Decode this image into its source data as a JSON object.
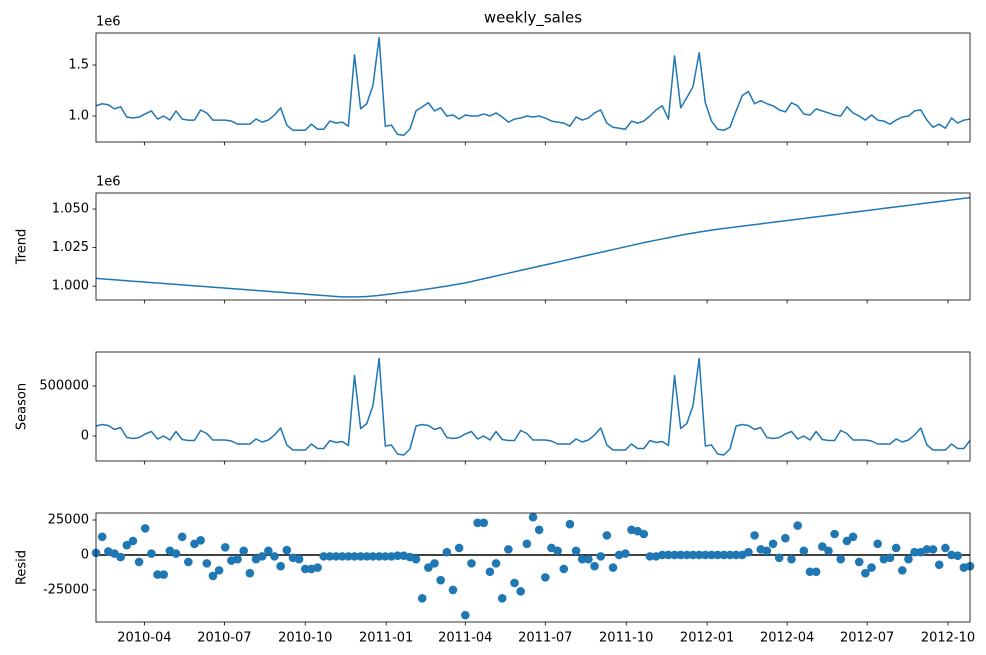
{
  "chart_data": [
    {
      "type": "line",
      "title": "weekly_sales",
      "offset_text": "1e6",
      "color": "#1f77b4",
      "values": [
        1100000,
        1120000,
        1110000,
        1070000,
        1090000,
        990000,
        980000,
        990000,
        1020000,
        1050000,
        970000,
        1000000,
        960000,
        1050000,
        970000,
        960000,
        960000,
        1060000,
        1030000,
        960000,
        960000,
        960000,
        950000,
        920000,
        920000,
        920000,
        970000,
        940000,
        960000,
        1010000,
        1080000,
        910000,
        860000,
        860000,
        860000,
        920000,
        870000,
        870000,
        950000,
        930000,
        940000,
        900000,
        1600000,
        1070000,
        1120000,
        1300000,
        1770000,
        900000,
        910000,
        820000,
        810000,
        870000,
        1050000,
        1090000,
        1130000,
        1050000,
        1080000,
        1000000,
        1010000,
        970000,
        1010000,
        1000000,
        1000000,
        1020000,
        1000000,
        1030000,
        990000,
        940000,
        970000,
        980000,
        1000000,
        990000,
        1000000,
        980000,
        950000,
        940000,
        930000,
        900000,
        990000,
        960000,
        980000,
        1030000,
        1060000,
        930000,
        890000,
        880000,
        870000,
        950000,
        930000,
        950000,
        1000000,
        1060000,
        1100000,
        970000,
        1590000,
        1080000,
        1180000,
        1290000,
        1620000,
        1130000,
        950000,
        870000,
        860000,
        890000,
        1050000,
        1200000,
        1240000,
        1120000,
        1150000,
        1120000,
        1100000,
        1060000,
        1040000,
        1130000,
        1100000,
        1020000,
        1010000,
        1070000,
        1050000,
        1030000,
        1010000,
        1000000,
        1090000,
        1030000,
        1000000,
        960000,
        1010000,
        960000,
        950000,
        920000,
        960000,
        990000,
        1000000,
        1050000,
        1060000,
        960000,
        890000,
        920000,
        880000,
        980000,
        930000,
        960000,
        970000
      ],
      "ylim": [
        745000,
        1814000
      ],
      "yticks": [
        {
          "value": 1000000,
          "label": "1.0"
        },
        {
          "value": 1500000,
          "label": "1.5"
        }
      ]
    },
    {
      "type": "line",
      "ylabel": "Trend",
      "offset_text": "1e6",
      "color": "#1f77b4",
      "values": [
        1005000,
        1004700,
        1004400,
        1004100,
        1003800,
        1003500,
        1003200,
        1002900,
        1002600,
        1002300,
        1002000,
        1001700,
        1001400,
        1001100,
        1000800,
        1000500,
        1000200,
        999900,
        999600,
        999300,
        999000,
        998700,
        998400,
        998100,
        997800,
        997500,
        997200,
        996900,
        996600,
        996300,
        996000,
        995700,
        995400,
        995100,
        994800,
        994500,
        994200,
        993900,
        993600,
        993300,
        993000,
        993000,
        993000,
        993100,
        993300,
        993600,
        994000,
        994500,
        995000,
        995500,
        996000,
        996500,
        997000,
        997600,
        998200,
        998800,
        999400,
        1000000,
        1000700,
        1001400,
        1002100,
        1003000,
        1003900,
        1004800,
        1005700,
        1006600,
        1007500,
        1008400,
        1009300,
        1010200,
        1011100,
        1012000,
        1012900,
        1013800,
        1014700,
        1015600,
        1016500,
        1017400,
        1018300,
        1019200,
        1020100,
        1021000,
        1021900,
        1022800,
        1023700,
        1024600,
        1025500,
        1026400,
        1027300,
        1028200,
        1029000,
        1029800,
        1030600,
        1031400,
        1032200,
        1033000,
        1033700,
        1034400,
        1035100,
        1035700,
        1036300,
        1036900,
        1037400,
        1037900,
        1038400,
        1038900,
        1039400,
        1039900,
        1040400,
        1040900,
        1041400,
        1041900,
        1042400,
        1042900,
        1043400,
        1043900,
        1044400,
        1044900,
        1045400,
        1045900,
        1046400,
        1046900,
        1047400,
        1047900,
        1048400,
        1048900,
        1049400,
        1049900,
        1050400,
        1050900,
        1051400,
        1051900,
        1052400,
        1052900,
        1053400,
        1053900,
        1054400,
        1054900,
        1055400,
        1055900,
        1056400,
        1056900,
        1057400
      ],
      "ylim": [
        991000,
        1060400
      ],
      "yticks": [
        {
          "value": 1000000,
          "label": "1.000"
        },
        {
          "value": 1025000,
          "label": "1.025"
        },
        {
          "value": 1050000,
          "label": "1.050"
        }
      ]
    },
    {
      "type": "line",
      "ylabel": "Season",
      "color": "#1f77b4",
      "values": [
        100000,
        115000,
        105000,
        65000,
        85000,
        -15000,
        -25000,
        -15000,
        20000,
        45000,
        -30000,
        0,
        -40000,
        45000,
        -35000,
        -45000,
        -45000,
        55000,
        25000,
        -40000,
        -40000,
        -40000,
        -50000,
        -80000,
        -80000,
        -80000,
        -30000,
        -60000,
        -40000,
        10000,
        80000,
        -90000,
        -140000,
        -140000,
        -140000,
        -80000,
        -125000,
        -125000,
        -45000,
        -65000,
        -55000,
        -95000,
        605000,
        75000,
        125000,
        305000,
        775000,
        -100000,
        -90000,
        -180000,
        -190000,
        -130000,
        100000,
        115000,
        105000,
        65000,
        85000,
        -15000,
        -25000,
        -15000,
        20000,
        45000,
        -30000,
        0,
        -40000,
        45000,
        -35000,
        -45000,
        -45000,
        55000,
        25000,
        -40000,
        -40000,
        -40000,
        -50000,
        -80000,
        -80000,
        -80000,
        -30000,
        -60000,
        -40000,
        10000,
        80000,
        -90000,
        -140000,
        -140000,
        -140000,
        -80000,
        -125000,
        -125000,
        -45000,
        -65000,
        -55000,
        -95000,
        605000,
        75000,
        125000,
        305000,
        775000,
        -100000,
        -90000,
        -180000,
        -190000,
        -130000,
        100000,
        115000,
        105000,
        65000,
        85000,
        -15000,
        -25000,
        -15000,
        20000,
        45000,
        -30000,
        0,
        -40000,
        45000,
        -35000,
        -45000,
        -45000,
        55000,
        25000,
        -40000,
        -40000,
        -40000,
        -50000,
        -80000,
        -80000,
        -80000,
        -30000,
        -60000,
        -40000,
        10000,
        80000,
        -90000,
        -140000,
        -140000,
        -140000,
        -80000,
        -125000,
        -125000,
        -45000
      ],
      "ylim": [
        -250000,
        840000
      ],
      "yticks": [
        0,
        500000
      ]
    },
    {
      "type": "scatter",
      "ylabel": "Resid",
      "color": "#1f77b4",
      "hline": 0,
      "values": [
        1500,
        13000,
        2500,
        1000,
        -1500,
        7000,
        10000,
        -5000,
        19000,
        1000,
        -14000,
        -14000,
        3000,
        1000,
        13000,
        -5000,
        8000,
        10500,
        -6000,
        -15000,
        -11000,
        5500,
        -4000,
        -3000,
        3000,
        -13000,
        -3000,
        -1000,
        3000,
        -1000,
        -8000,
        3500,
        -2000,
        -3000,
        -10000,
        -10000,
        -9000,
        -1000,
        -1000,
        -1000,
        -1000,
        -1000,
        -1000,
        -1000,
        -1000,
        -1000,
        -1000,
        -1000,
        -1000,
        -500,
        -500,
        -1500,
        -3000,
        -31000,
        -9000,
        -6000,
        -18000,
        2000,
        -25000,
        5000,
        -43000,
        -6000,
        23000,
        23000,
        -12000,
        -6000,
        -31000,
        4000,
        -20000,
        -26000,
        8000,
        27000,
        18000,
        -16000,
        5000,
        3000,
        -10000,
        22000,
        3000,
        -3000,
        -3000,
        -8000,
        -1000,
        14000,
        -9000,
        0,
        1000,
        18000,
        17000,
        15000,
        -1000,
        -1000,
        0,
        0,
        0,
        0,
        0,
        0,
        0,
        0,
        0,
        0,
        0,
        0,
        0,
        0,
        2000,
        14000,
        4000,
        3000,
        8000,
        -2000,
        12000,
        -3000,
        21000,
        3000,
        -12000,
        -12000,
        6000,
        3000,
        15000,
        -3000,
        10000,
        13000,
        -5000,
        -13000,
        -9000,
        8000,
        -3000,
        -2000,
        5000,
        -11000,
        -3000,
        2000,
        2000,
        4000,
        4000,
        -7000,
        5000,
        0,
        -500,
        -9000,
        -8000
      ],
      "ylim": [
        -47900,
        30000
      ],
      "yticks": [
        -25000,
        0,
        25000
      ],
      "x": [
        "2010-02-05",
        "2010-02-12",
        "2010-02-19",
        "2010-02-26",
        "2010-03-05",
        "2010-03-12",
        "2010-03-19",
        "2010-03-26",
        "2010-04-02",
        "2010-04-09",
        "2010-04-16",
        "2010-04-23",
        "2010-04-30",
        "2010-05-07",
        "2010-05-14",
        "2010-05-21",
        "2010-05-28",
        "2010-06-04",
        "2010-06-11",
        "2010-06-18",
        "2010-06-25",
        "2010-07-02",
        "2010-07-09",
        "2010-07-16",
        "2010-07-23",
        "2010-07-30",
        "2010-08-06",
        "2010-08-13",
        "2010-08-20",
        "2010-08-27",
        "2010-09-03",
        "2010-09-10",
        "2010-09-17",
        "2010-09-24",
        "2010-10-01",
        "2010-10-08",
        "2010-10-15",
        "2010-10-22",
        "2010-10-29",
        "2010-11-05",
        "2010-11-12",
        "2010-11-19",
        "2010-11-26",
        "2010-12-03",
        "2010-12-10",
        "2010-12-17",
        "2010-12-24",
        "2010-12-31",
        "2011-01-07",
        "2011-01-14",
        "2011-01-21",
        "2011-01-28",
        "2011-02-04",
        "2011-02-11",
        "2011-02-18",
        "2011-02-25",
        "2011-03-04",
        "2011-03-11",
        "2011-03-18",
        "2011-03-25",
        "2011-04-01",
        "2011-04-08",
        "2011-04-15",
        "2011-04-22",
        "2011-04-29",
        "2011-05-06",
        "2011-05-13",
        "2011-05-20",
        "2011-05-27",
        "2011-06-03",
        "2011-06-10",
        "2011-06-17",
        "2011-06-24",
        "2011-07-01",
        "2011-07-08",
        "2011-07-15",
        "2011-07-22",
        "2011-07-29",
        "2011-08-05",
        "2011-08-12",
        "2011-08-19",
        "2011-08-26",
        "2011-09-02",
        "2011-09-09",
        "2011-09-16",
        "2011-09-23",
        "2011-09-30",
        "2011-10-07",
        "2011-10-14",
        "2011-10-21",
        "2011-10-28",
        "2011-11-04",
        "2011-11-11",
        "2011-11-18",
        "2011-11-25",
        "2011-12-02",
        "2011-12-09",
        "2011-12-16",
        "2011-12-23",
        "2011-12-30",
        "2012-01-06",
        "2012-01-13",
        "2012-01-20",
        "2012-01-27",
        "2012-02-03",
        "2012-02-10",
        "2012-02-17",
        "2012-02-24",
        "2012-03-02",
        "2012-03-09",
        "2012-03-16",
        "2012-03-23",
        "2012-03-30",
        "2012-04-06",
        "2012-04-13",
        "2012-04-20",
        "2012-04-27",
        "2012-05-04",
        "2012-05-11",
        "2012-05-18",
        "2012-05-25",
        "2012-06-01",
        "2012-06-08",
        "2012-06-15",
        "2012-06-22",
        "2012-06-29",
        "2012-07-06",
        "2012-07-13",
        "2012-07-20",
        "2012-07-27",
        "2012-08-03",
        "2012-08-10",
        "2012-08-17",
        "2012-08-24",
        "2012-08-31",
        "2012-09-07",
        "2012-09-14",
        "2012-09-21",
        "2012-09-28",
        "2012-10-05",
        "2012-10-12",
        "2012-10-19",
        "2012-10-26"
      ],
      "xlim": [
        "2010-02-05",
        "2012-10-26"
      ],
      "xticks": [
        {
          "value": "2010-04-01",
          "label": "2010-04"
        },
        {
          "value": "2010-07-01",
          "label": "2010-07"
        },
        {
          "value": "2010-10-01",
          "label": "2010-10"
        },
        {
          "value": "2011-01-01",
          "label": "2011-01"
        },
        {
          "value": "2011-04-01",
          "label": "2011-04"
        },
        {
          "value": "2011-07-01",
          "label": "2011-07"
        },
        {
          "value": "2011-10-01",
          "label": "2011-10"
        },
        {
          "value": "2012-01-01",
          "label": "2012-01"
        },
        {
          "value": "2012-04-01",
          "label": "2012-04"
        },
        {
          "value": "2012-07-01",
          "label": "2012-07"
        },
        {
          "value": "2012-10-01",
          "label": "2012-10"
        }
      ]
    }
  ]
}
